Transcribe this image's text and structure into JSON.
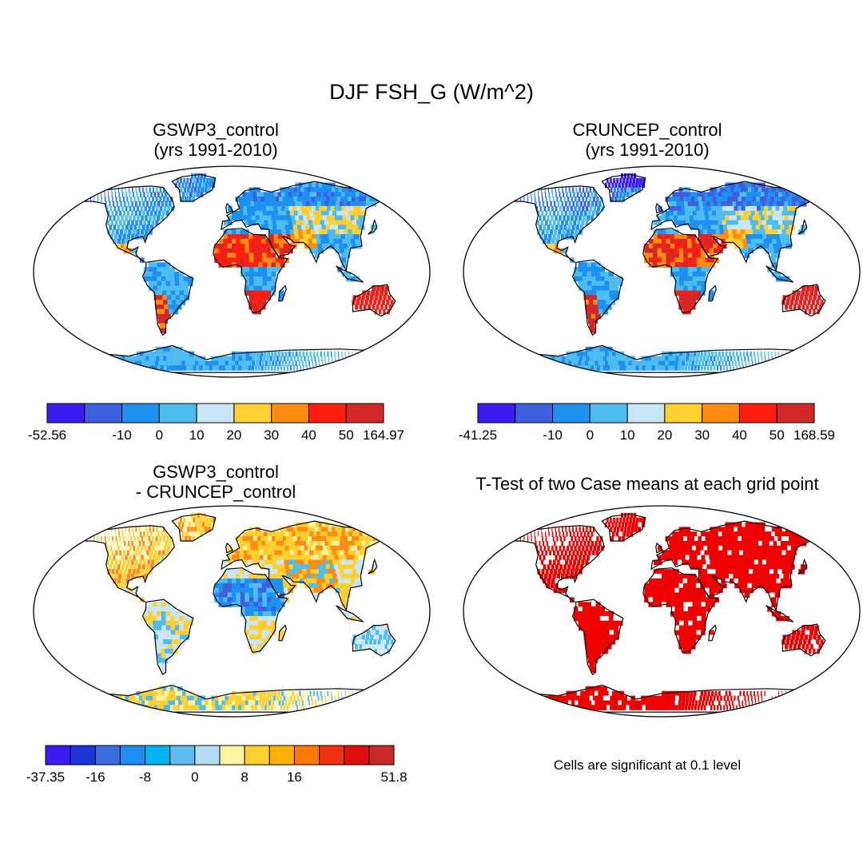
{
  "figure_title": "DJF FSH_G (W/m^2)",
  "chart_data": [
    {
      "type": "heatmap",
      "title": "GSWP3_control",
      "subtitle": "(yrs 1991-2010)",
      "colorbar": {
        "min": "-52.56",
        "max": "164.97",
        "boundaries": [
          "-52.56",
          "",
          "-10",
          "0",
          "10",
          "20",
          "30",
          "40",
          "50",
          "164.97"
        ],
        "colors": [
          "#3a1cf0",
          "#3e5fe0",
          "#1e90f0",
          "#4fbcf0",
          "#c8e6f5",
          "#ffd030",
          "#ff8c10",
          "#ff1e10",
          "#d42828"
        ]
      }
    },
    {
      "type": "heatmap",
      "title": "CRUNCEP_control",
      "subtitle": "(yrs 1991-2010)",
      "colorbar": {
        "min": "-41.25",
        "max": "168.59",
        "boundaries": [
          "-41.25",
          "",
          "-10",
          "0",
          "10",
          "20",
          "30",
          "40",
          "50",
          "168.59"
        ],
        "colors": [
          "#3a1cf0",
          "#3e5fe0",
          "#1e90f0",
          "#4fbcf0",
          "#c8e6f5",
          "#ffd030",
          "#ff8c10",
          "#ff1e10",
          "#d42828"
        ]
      }
    },
    {
      "type": "heatmap",
      "title": "GSWP3_control",
      "subtitle": "- CRUNCEP_control",
      "colorbar": {
        "min": "-37.35",
        "max": "51.8",
        "labels": [
          "-37.35",
          "",
          "-16",
          "",
          "-8",
          "",
          "0",
          "",
          "8",
          "",
          "16",
          "",
          "",
          "51.8"
        ],
        "colors": [
          "#3a1cf0",
          "#1c34d8",
          "#3c6adc",
          "#1e8ef0",
          "#00b4f0",
          "#5cbcf0",
          "#b4dcf4",
          "#fff4a0",
          "#ffd030",
          "#ffb000",
          "#ff7800",
          "#f03010",
          "#e00e0e",
          "#c82828"
        ]
      }
    },
    {
      "type": "heatmap",
      "title": "T-Test of two Case means at each grid point",
      "note": "Cells are significant at 0.1 level",
      "significant_color": "#ee0000"
    }
  ],
  "colors": {
    "land_blue": "#2f8ff0",
    "land_light_blue": "#5cbcf0",
    "land_red": "#d42828",
    "land_orange": "#ff8c10",
    "land_yellow": "#ffd030",
    "land_red_sig": "#ee0000"
  }
}
